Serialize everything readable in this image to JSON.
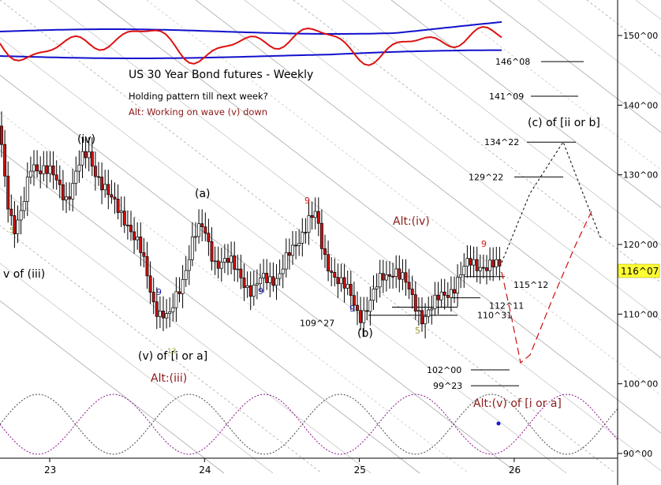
{
  "chart_data": {
    "type": "candlestick",
    "title": "US 30 Year Bond futures - Weekly",
    "notes": [
      "Holding pattern till next week?",
      "Alt: Working on wave (v) down"
    ],
    "x_ticks": [
      "23",
      "24",
      "25",
      "26"
    ],
    "y_ticks": [
      "150^00",
      "140^00",
      "130^00",
      "120^00",
      "110^00",
      "100^00",
      "90^00"
    ],
    "y_range": [
      89,
      155
    ],
    "current_price": "116^07",
    "price_levels": [
      {
        "label": "146^08",
        "value": 146.25
      },
      {
        "label": "141^09",
        "value": 141.28
      },
      {
        "label": "134^22",
        "value": 134.69
      },
      {
        "label": "129^22",
        "value": 129.69
      },
      {
        "label": "115^12",
        "value": 115.38
      },
      {
        "label": "112^11",
        "value": 112.34
      },
      {
        "label": "110^31",
        "value": 111.0
      },
      {
        "label": "109^27",
        "value": 109.84
      },
      {
        "label": "102^00",
        "value": 102.0
      },
      {
        "label": "99^23",
        "value": 99.72
      }
    ],
    "wave_labels": [
      {
        "text": "v of (iii)",
        "color": "#000000"
      },
      {
        "text": "(iv)",
        "color": "#000000"
      },
      {
        "text": "(a)",
        "color": "#000000"
      },
      {
        "text": "(v) of [i or a]",
        "color": "#000000"
      },
      {
        "text": "Alt:(iii)",
        "color": "#8b1a1a"
      },
      {
        "text": "Alt:(iv)",
        "color": "#8b1a1a"
      },
      {
        "text": "(b)",
        "color": "#000000"
      },
      {
        "text": "(c) of [ii or b]",
        "color": "#000000"
      },
      {
        "text": "Alt:(v) of [i or a]",
        "color": "#8b1a1a"
      }
    ],
    "count_marks": [
      {
        "text": "9",
        "color": "#1a1aa8"
      },
      {
        "text": "9",
        "color": "#1a1aa8"
      },
      {
        "text": "9",
        "color": "#d11a1a"
      },
      {
        "text": "9",
        "color": "#1a1aa8"
      },
      {
        "text": "5",
        "color": "#999933"
      },
      {
        "text": "9",
        "color": "#d11a1a"
      },
      {
        "text": "13",
        "color": "#999933"
      },
      {
        "text": "5",
        "color": "#999933"
      }
    ],
    "colors": {
      "up": "#ffffff",
      "down": "#cc1111",
      "oscillator": "#dd1111",
      "bands": "#1111cc",
      "cycles": "#881188",
      "projection_alt": "#cc1111"
    }
  }
}
